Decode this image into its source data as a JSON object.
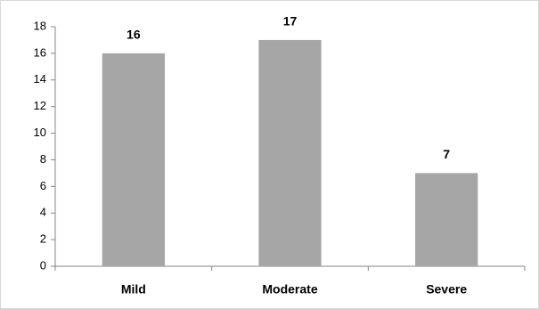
{
  "chart_data": {
    "type": "bar",
    "categories": [
      "Mild",
      "Moderate",
      "Severe"
    ],
    "values": [
      16,
      17,
      7
    ],
    "color": "#a6a6a6",
    "ylim": [
      0,
      18
    ],
    "yticks": [
      0,
      2,
      4,
      6,
      8,
      10,
      12,
      14,
      16,
      18
    ],
    "grid": false
  }
}
